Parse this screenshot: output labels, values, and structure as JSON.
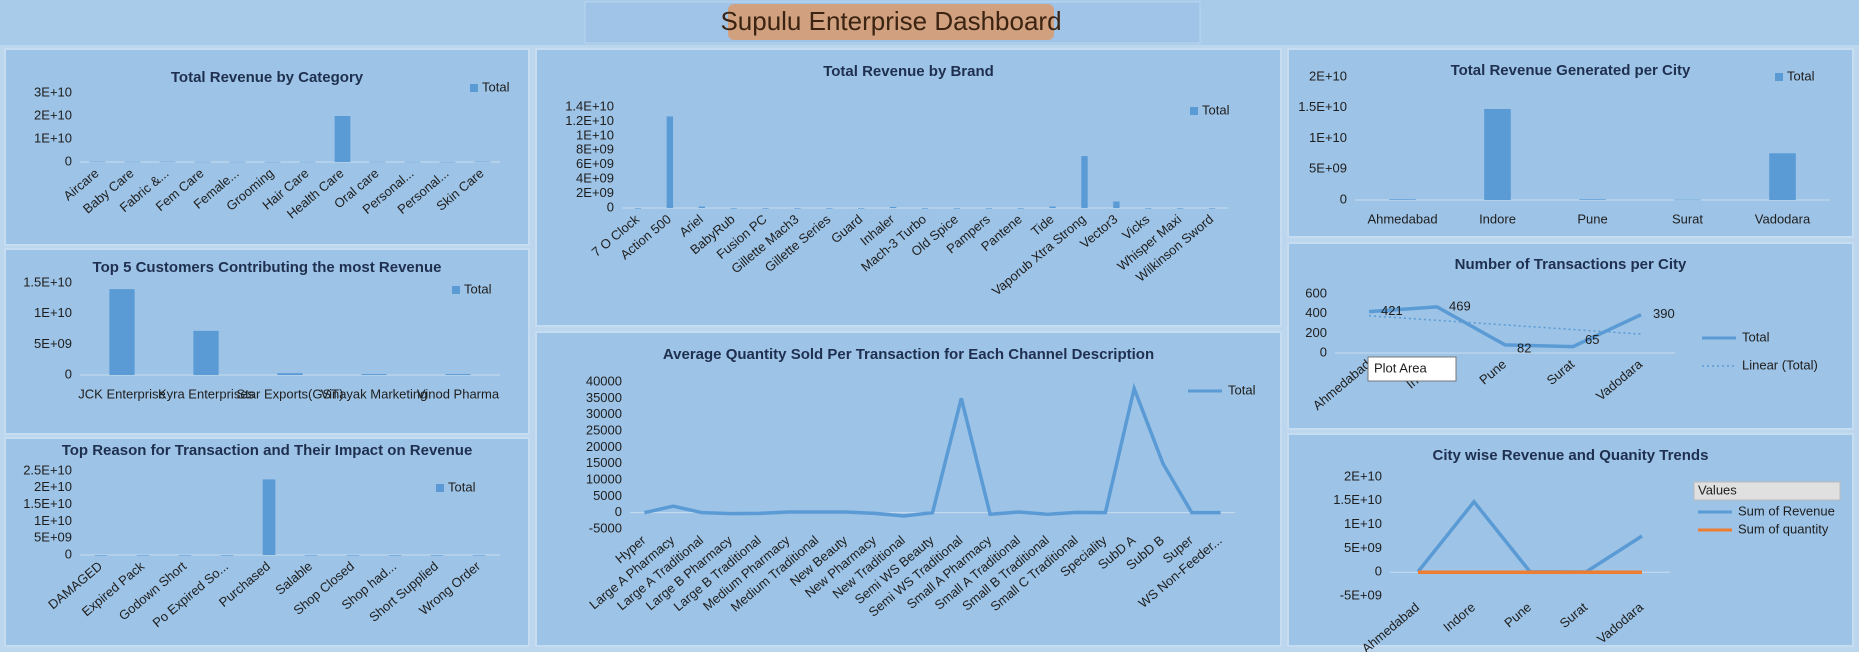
{
  "header": {
    "title": "Supulu Enterprise Dashboard"
  },
  "chart_data": [
    {
      "type": "bar",
      "title": "Total Revenue by Category",
      "categories": [
        "Aircare",
        "Baby Care",
        "Fabric &...",
        "Fem Care",
        "Female...",
        "Grooming",
        "Hair Care",
        "Health Care",
        "Oral care",
        "Personal...",
        "Personal...",
        "Skin Care"
      ],
      "series": [
        {
          "name": "Total",
          "color": "#5b9bd5",
          "values": [
            150000000,
            120000000,
            150000000,
            100000000,
            100000000,
            80000000,
            100000000,
            20000000000,
            120000000,
            100000000,
            80000000,
            150000000
          ]
        }
      ],
      "ylim": [
        0,
        30000000000
      ],
      "yticks": [
        0,
        {
          "value": 10000000000,
          "label": "1E+10"
        },
        {
          "value": 20000000000,
          "label": "2E+10"
        },
        {
          "value": 30000000000,
          "label": "3E+10"
        }
      ]
    },
    {
      "type": "bar",
      "title": "Top 5 Customers Contributing the most Revenue",
      "categories": [
        "JCK Enterprise",
        "Kyra Enterprises",
        "Star Exports(GST)",
        "Vinayak Marketing",
        "Vinod Pharma"
      ],
      "series": [
        {
          "name": "Total",
          "color": "#5b9bd5",
          "values": [
            14000000000,
            7200000000,
            300000000,
            150000000,
            150000000
          ]
        }
      ],
      "ylim": [
        0,
        15000000000
      ],
      "yticks": [
        0,
        {
          "value": 5000000000,
          "label": "5E+09"
        },
        {
          "value": 10000000000,
          "label": "1E+10"
        },
        {
          "value": 15000000000,
          "label": "1.5E+10"
        }
      ]
    },
    {
      "type": "bar",
      "title": "Top Reason for Transaction and Their Impact on Revenue",
      "categories": [
        "DAMAGED",
        "Expired Pack",
        "Godown Short",
        "Po Expired So...",
        "Purchased",
        "Salable",
        "Shop Closed",
        "Shop had...",
        "Short Supplied",
        "Wrong Order"
      ],
      "series": [
        {
          "name": "Total",
          "color": "#5b9bd5",
          "values": [
            0,
            0,
            0,
            0,
            22500000000,
            0,
            0,
            0,
            0,
            0
          ]
        }
      ],
      "ylim": [
        0,
        25000000000
      ],
      "yticks": [
        0,
        {
          "value": 5000000000,
          "label": "5E+09"
        },
        {
          "value": 10000000000,
          "label": "1E+10"
        },
        {
          "value": 15000000000,
          "label": "1.5E+10"
        },
        {
          "value": 20000000000,
          "label": "2E+10"
        },
        {
          "value": 25000000000,
          "label": "2.5E+10"
        }
      ]
    },
    {
      "type": "bar",
      "title": "Total Revenue by Brand",
      "categories": [
        "7 O Clock",
        "Action 500",
        "Ariel",
        "BabyRub",
        "Fusion PC",
        "Gillette Mach3",
        "Gillette Series",
        "Guard",
        "Inhaler",
        "Mach-3 Turbo",
        "Old Spice",
        "Pampers",
        "Pantene",
        "Tide",
        "Vaporub Xtra Strong",
        "Vector3",
        "Vicks",
        "Whisper Maxi",
        "Wilkinson Sword"
      ],
      "series": [
        {
          "name": "Total",
          "color": "#5b9bd5",
          "values": [
            0,
            12700000000,
            200000000,
            0,
            0,
            0,
            0,
            0,
            150000000,
            0,
            0,
            0,
            0,
            200000000,
            7200000000,
            900000000,
            0,
            0,
            0
          ]
        }
      ],
      "ylim": [
        0,
        14000000000
      ],
      "yticks": [
        0,
        {
          "value": 2000000000,
          "label": "2E+09"
        },
        {
          "value": 4000000000,
          "label": "4E+09"
        },
        {
          "value": 6000000000,
          "label": "6E+09"
        },
        {
          "value": 8000000000,
          "label": "8E+09"
        },
        {
          "value": 10000000000,
          "label": "1E+10"
        },
        {
          "value": 12000000000,
          "label": "1.2E+10"
        },
        {
          "value": 14000000000,
          "label": "1.4E+10"
        }
      ]
    },
    {
      "type": "line",
      "title": "Average Quantity Sold Per Transaction for Each Channel Description",
      "categories": [
        "Hyper",
        "Large A Pharmacy",
        "Large A Traditional",
        "Large B Pharmacy",
        "Large B Traditional",
        "Medium Pharmacy",
        "Medium Traditional",
        "New Beauty",
        "New Pharmacy",
        "New Traditional",
        "Semi WS Beauty",
        "Semi WS Traditional",
        "Small A Pharmacy",
        "Small A Traditional",
        "Small B Traditional",
        "Small C Traditional",
        "Speciality",
        "SubD A",
        "SubD B",
        "Super",
        "WS Non-Feeder..."
      ],
      "series": [
        {
          "name": "Total",
          "color": "#5b9bd5",
          "values": [
            0,
            2000,
            0,
            -300,
            -200,
            200,
            200,
            200,
            -200,
            -1000,
            0,
            35000,
            -500,
            200,
            -500,
            100,
            0,
            38000,
            15000,
            0,
            0
          ]
        }
      ],
      "ylim": [
        -5000,
        40000
      ],
      "yticks": [
        -5000,
        0,
        5000,
        10000,
        15000,
        20000,
        25000,
        30000,
        35000,
        40000
      ]
    },
    {
      "type": "bar",
      "title": "Total Revenue Generated per City",
      "categories": [
        "Ahmedabad",
        "Indore",
        "Pune",
        "Surat",
        "Vadodara"
      ],
      "series": [
        {
          "name": "Total",
          "color": "#5b9bd5",
          "values": [
            100000000,
            14800000000,
            100000000,
            50000000,
            7600000000
          ]
        }
      ],
      "ylim": [
        0,
        20000000000
      ],
      "yticks": [
        0,
        {
          "value": 5000000000,
          "label": "5E+09"
        },
        {
          "value": 10000000000,
          "label": "1E+10"
        },
        {
          "value": 15000000000,
          "label": "1.5E+10"
        },
        {
          "value": 20000000000,
          "label": "2E+10"
        }
      ]
    },
    {
      "type": "line",
      "title": "Number of Transactions per City",
      "categories": [
        "Ahmedabad",
        "Indore",
        "Pune",
        "Surat",
        "Vadodara"
      ],
      "series": [
        {
          "name": "Total",
          "color": "#5b9bd5",
          "values": [
            421,
            469,
            82,
            65,
            390
          ],
          "data_labels": true
        },
        {
          "name": "Linear (Total)",
          "color": "#5b9bd5",
          "values": [
            378.6,
            332,
            285.4,
            238.8,
            192.2
          ],
          "dotted": true
        }
      ],
      "ylim": [
        0,
        600
      ],
      "yticks": [
        0,
        200,
        400,
        600
      ],
      "tooltip": "Plot Area"
    },
    {
      "type": "line",
      "title": "City wise Revenue and Quanity Trends",
      "categories": [
        "Ahmedabad",
        "Indore",
        "Pune",
        "Surat",
        "Vadodara"
      ],
      "legend_title": "Values",
      "series": [
        {
          "name": "Sum of Revenue",
          "color": "#5b9bd5",
          "values": [
            100000000,
            14800000000,
            100000000,
            50000000,
            7600000000
          ]
        },
        {
          "name": "Sum of quantity",
          "color": "#ed7d31",
          "values": [
            120000,
            150000,
            30000,
            20000,
            100000
          ]
        }
      ],
      "ylim": [
        -5000000000,
        20000000000
      ],
      "yticks": [
        {
          "value": -5000000000,
          "label": "-5E+09"
        },
        0,
        {
          "value": 5000000000,
          "label": "5E+09"
        },
        {
          "value": 10000000000,
          "label": "1E+10"
        },
        {
          "value": 15000000000,
          "label": "1.5E+10"
        },
        {
          "value": 20000000000,
          "label": "2E+10"
        }
      ]
    }
  ]
}
